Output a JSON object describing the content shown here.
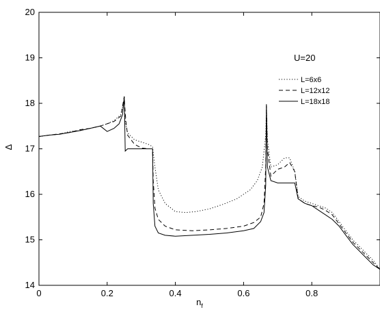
{
  "chart_data": {
    "type": "line",
    "xlabel_main": "n",
    "xlabel_sub": "f",
    "ylabel": "Δ",
    "xlim": [
      0,
      1
    ],
    "ylim": [
      14,
      20
    ],
    "x_ticks": [
      0,
      0.2,
      0.4,
      0.6,
      0.8
    ],
    "x_tick_labels": [
      "0",
      "0.2",
      "0.4",
      "0.6",
      "0.8"
    ],
    "y_ticks": [
      14,
      15,
      16,
      17,
      18,
      19,
      20
    ],
    "y_tick_labels": [
      "14",
      "15",
      "16",
      "17",
      "18",
      "19",
      "20"
    ],
    "annotation": "U=20",
    "legend_position": "upper-right",
    "grid": false,
    "series": [
      {
        "name": "L=6x6",
        "style": "dotted",
        "x": [
          0,
          0.03,
          0.06,
          0.09,
          0.12,
          0.15,
          0.18,
          0.2,
          0.22,
          0.24,
          0.25,
          0.253,
          0.26,
          0.28,
          0.3,
          0.32,
          0.333,
          0.34,
          0.35,
          0.37,
          0.4,
          0.43,
          0.46,
          0.5,
          0.54,
          0.58,
          0.62,
          0.64,
          0.655,
          0.665,
          0.667,
          0.67,
          0.68,
          0.7,
          0.72,
          0.735,
          0.75,
          0.76,
          0.78,
          0.8,
          0.82,
          0.84,
          0.86,
          0.88,
          0.9,
          0.92,
          0.94,
          0.96,
          0.98,
          1.0
        ],
        "y": [
          17.27,
          17.3,
          17.32,
          17.38,
          17.4,
          17.45,
          17.5,
          17.55,
          17.62,
          17.75,
          18.1,
          17.6,
          17.35,
          17.2,
          17.15,
          17.1,
          17.05,
          16.6,
          16.1,
          15.8,
          15.62,
          15.6,
          15.62,
          15.68,
          15.78,
          15.9,
          16.1,
          16.3,
          16.6,
          17.3,
          17.9,
          17.2,
          16.6,
          16.65,
          16.8,
          16.8,
          16.5,
          15.95,
          15.85,
          15.8,
          15.75,
          15.7,
          15.6,
          15.4,
          15.2,
          15.0,
          14.85,
          14.7,
          14.55,
          14.35
        ]
      },
      {
        "name": "L=12x12",
        "style": "dashed",
        "x": [
          0,
          0.03,
          0.06,
          0.09,
          0.12,
          0.15,
          0.18,
          0.2,
          0.22,
          0.24,
          0.25,
          0.252,
          0.255,
          0.26,
          0.28,
          0.3,
          0.32,
          0.333,
          0.335,
          0.34,
          0.35,
          0.37,
          0.4,
          0.45,
          0.5,
          0.55,
          0.6,
          0.63,
          0.65,
          0.66,
          0.665,
          0.667,
          0.67,
          0.68,
          0.7,
          0.72,
          0.735,
          0.75,
          0.76,
          0.78,
          0.8,
          0.82,
          0.84,
          0.86,
          0.88,
          0.9,
          0.92,
          0.94,
          0.96,
          0.98,
          1.0
        ],
        "y": [
          17.27,
          17.3,
          17.33,
          17.36,
          17.42,
          17.45,
          17.5,
          17.55,
          17.6,
          17.72,
          18.15,
          17.9,
          17.6,
          17.3,
          17.1,
          17.02,
          17.0,
          17.0,
          16.3,
          15.7,
          15.45,
          15.3,
          15.22,
          15.2,
          15.22,
          15.25,
          15.3,
          15.38,
          15.5,
          15.8,
          16.6,
          17.95,
          17.0,
          16.4,
          16.55,
          16.6,
          16.7,
          16.5,
          15.9,
          15.8,
          15.75,
          15.72,
          15.65,
          15.55,
          15.35,
          15.15,
          14.95,
          14.8,
          14.65,
          14.5,
          14.35
        ]
      },
      {
        "name": "L=18x18",
        "style": "solid",
        "x": [
          0,
          0.03,
          0.06,
          0.09,
          0.12,
          0.15,
          0.18,
          0.2,
          0.22,
          0.235,
          0.245,
          0.25,
          0.252,
          0.253,
          0.26,
          0.28,
          0.3,
          0.32,
          0.333,
          0.335,
          0.34,
          0.35,
          0.37,
          0.4,
          0.45,
          0.5,
          0.55,
          0.6,
          0.63,
          0.65,
          0.66,
          0.665,
          0.667,
          0.67,
          0.68,
          0.7,
          0.72,
          0.74,
          0.75,
          0.76,
          0.78,
          0.8,
          0.82,
          0.84,
          0.86,
          0.88,
          0.9,
          0.92,
          0.94,
          0.96,
          0.98,
          1.0
        ],
        "y": [
          17.27,
          17.3,
          17.32,
          17.36,
          17.4,
          17.45,
          17.5,
          17.38,
          17.45,
          17.55,
          17.75,
          18.15,
          17.4,
          16.95,
          17.0,
          17.0,
          17.0,
          17.0,
          17.0,
          15.8,
          15.3,
          15.15,
          15.1,
          15.08,
          15.1,
          15.12,
          15.15,
          15.2,
          15.25,
          15.4,
          15.6,
          16.2,
          17.98,
          16.6,
          16.3,
          16.25,
          16.25,
          16.25,
          16.25,
          15.9,
          15.8,
          15.75,
          15.65,
          15.55,
          15.45,
          15.3,
          15.1,
          14.9,
          14.75,
          14.6,
          14.45,
          14.35
        ]
      }
    ]
  }
}
